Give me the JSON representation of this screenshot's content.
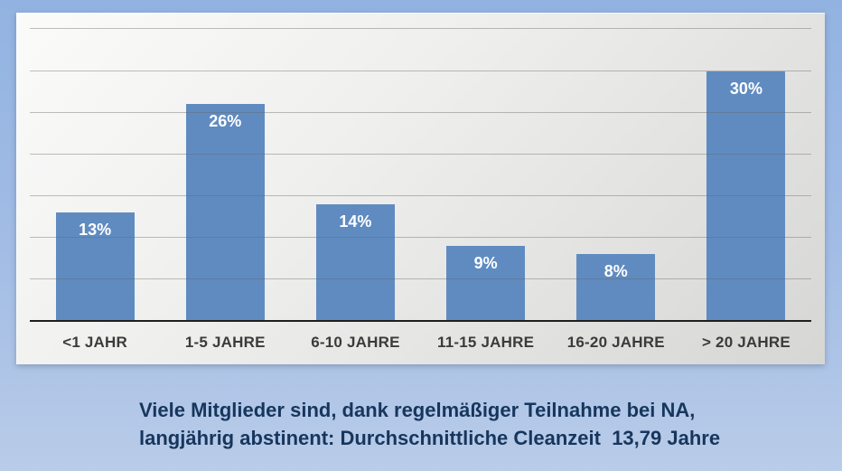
{
  "chart_data": {
    "type": "bar",
    "categories": [
      "<1 JAHR",
      "1-5 JAHRE",
      "6-10 JAHRE",
      "11-15 JAHRE",
      "16-20 JAHRE",
      "> 20 JAHRE"
    ],
    "values": [
      13,
      26,
      14,
      9,
      8,
      30
    ],
    "value_labels": [
      "13%",
      "26%",
      "14%",
      "9%",
      "8%",
      "30%"
    ],
    "title": "",
    "xlabel": "",
    "ylabel": "",
    "ylim": [
      0,
      37
    ],
    "gridline_step": 5,
    "grid": true,
    "legend": false,
    "bar_color": "#5f8bc1",
    "value_label_color": "#ffffff",
    "axis_label_color": "#3b3b3b"
  },
  "caption": {
    "line1": "Viele Mitglieder sind, dank regelmäßiger Teilnahme bei NA,",
    "line2": "langjährig abstinent: Durchschnittliche Cleanzeit  13,79 Jahre",
    "color": "#17365d"
  }
}
